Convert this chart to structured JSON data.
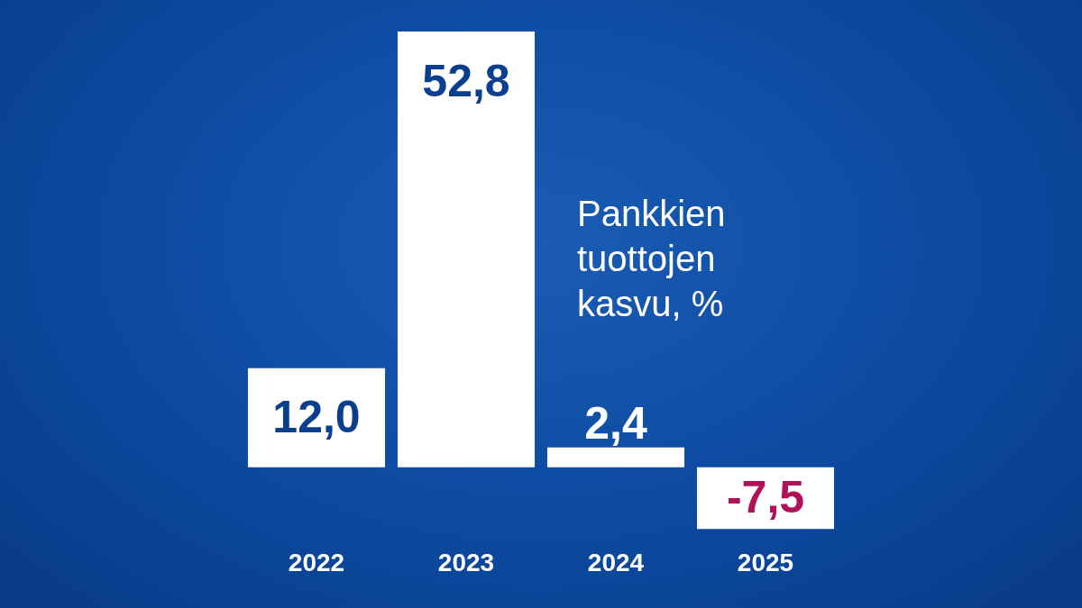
{
  "chart_data": {
    "type": "bar",
    "title": "Pankkien tuottojen kasvu, %",
    "categories": [
      "2022",
      "2023",
      "2024",
      "2025"
    ],
    "values": [
      12.0,
      52.8,
      2.4,
      -7.5
    ],
    "value_labels": [
      "12,0",
      "52,8",
      "2,4",
      "-7,5"
    ],
    "color": "#ffffff",
    "grid": false,
    "legend": false
  }
}
